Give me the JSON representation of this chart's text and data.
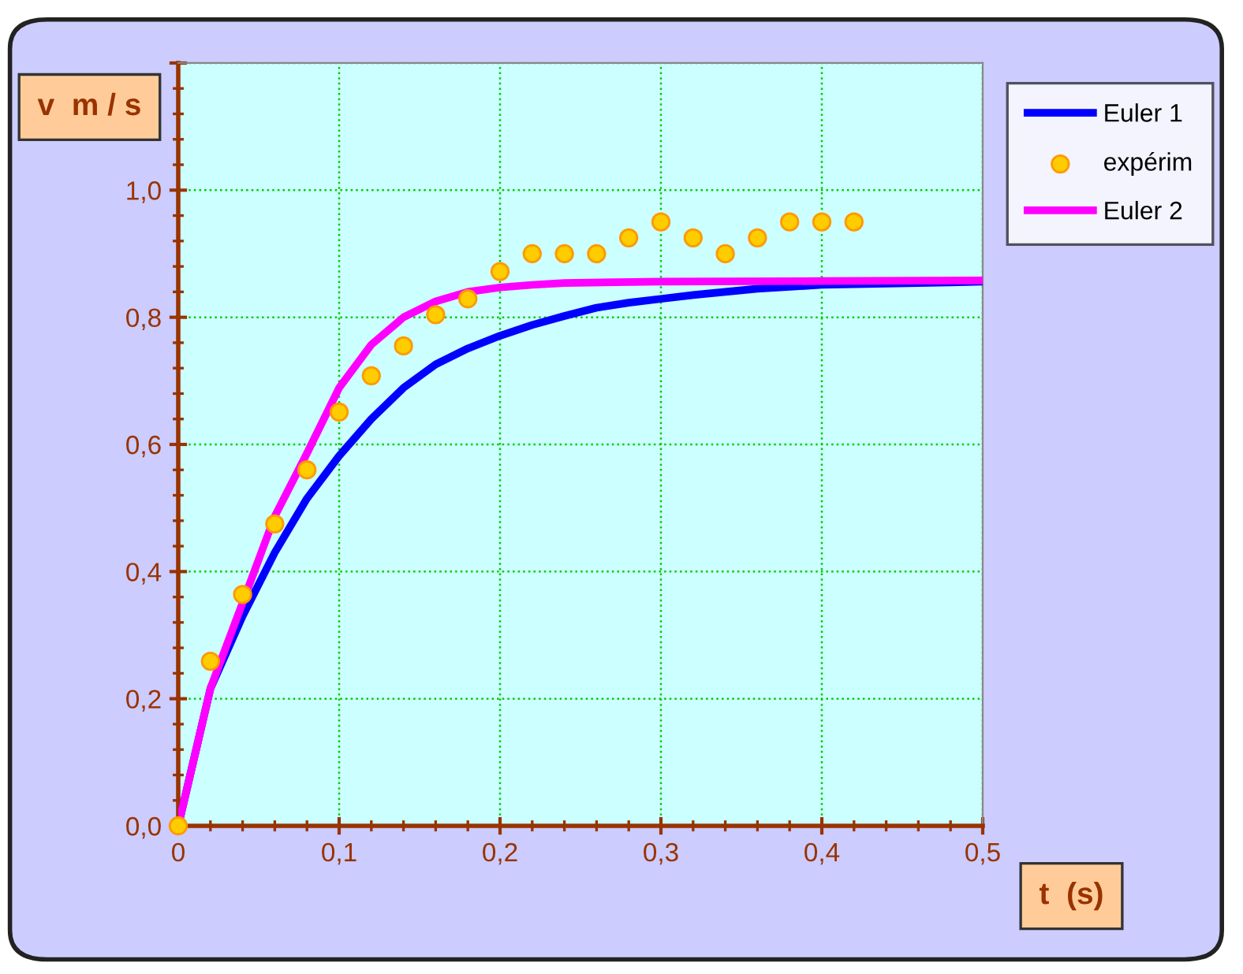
{
  "chart_data": {
    "type": "line",
    "xlabel": "t  (s)",
    "ylabel": "v  m / s",
    "xlim": [
      0,
      0.5
    ],
    "ylim": [
      0,
      1.2
    ],
    "xticks": [
      0,
      {
        "value": 0.1,
        "label": "0,1"
      },
      {
        "value": 0.2,
        "label": "0,2"
      },
      {
        "value": 0.3,
        "label": "0,3"
      },
      {
        "value": 0.4,
        "label": "0,4"
      },
      {
        "value": 0.5,
        "label": "0,5"
      }
    ],
    "yticks": [
      {
        "value": 0,
        "label": "0,0"
      },
      {
        "value": 0.2,
        "label": "0,2"
      },
      {
        "value": 0.4,
        "label": "0,4"
      },
      {
        "value": 0.6,
        "label": "0,6"
      },
      {
        "value": 0.8,
        "label": "0,8"
      },
      {
        "value": 1.0,
        "label": "1,0"
      },
      {
        "value": 1.2,
        "label": null
      }
    ],
    "grid": true,
    "legend": "top right",
    "series": [
      {
        "name": "Euler 1",
        "color": "#0000ff",
        "x": [
          0,
          0.02,
          0.04,
          0.06,
          0.08,
          0.1,
          0.12,
          0.14,
          0.16,
          0.18,
          0.2,
          0.22,
          0.24,
          0.26,
          0.28,
          0.3,
          0.32,
          0.34,
          0.36,
          0.38,
          0.4,
          0.42,
          0.44,
          0.46,
          0.48,
          0.5
        ],
        "values": [
          0,
          0.216,
          0.33,
          0.43,
          0.515,
          0.582,
          0.64,
          0.689,
          0.726,
          0.751,
          0.771,
          0.788,
          0.802,
          0.815,
          0.823,
          0.829,
          0.835,
          0.84,
          0.845,
          0.848,
          0.851,
          0.852,
          0.853,
          0.854,
          0.855,
          0.856
        ]
      },
      {
        "name": "expérim",
        "type": "scatter",
        "color": "#ffcc00",
        "marker": "circle",
        "x": [
          0,
          0.02,
          0.04,
          0.06,
          0.08,
          0.1,
          0.12,
          0.14,
          0.16,
          0.18,
          0.2,
          0.22,
          0.24,
          0.26,
          0.28,
          0.3,
          0.32,
          0.34,
          0.36,
          0.38,
          0.4,
          0.42
        ],
        "values": [
          0,
          0.259,
          0.364,
          0.475,
          0.56,
          0.651,
          0.708,
          0.755,
          0.804,
          0.829,
          0.872,
          0.9,
          0.9,
          0.9,
          0.925,
          0.95,
          0.925,
          0.9,
          0.925,
          0.95,
          0.95,
          0.95
        ]
      },
      {
        "name": "Euler 2",
        "color": "#ff00ff",
        "x": [
          0,
          0.02,
          0.04,
          0.06,
          0.08,
          0.1,
          0.12,
          0.14,
          0.16,
          0.18,
          0.2,
          0.22,
          0.24,
          0.3,
          0.4,
          0.5
        ],
        "values": [
          0,
          0.216,
          0.351,
          0.487,
          0.586,
          0.689,
          0.757,
          0.8,
          0.825,
          0.84,
          0.847,
          0.851,
          0.854,
          0.856,
          0.857,
          0.858
        ]
      }
    ]
  }
}
